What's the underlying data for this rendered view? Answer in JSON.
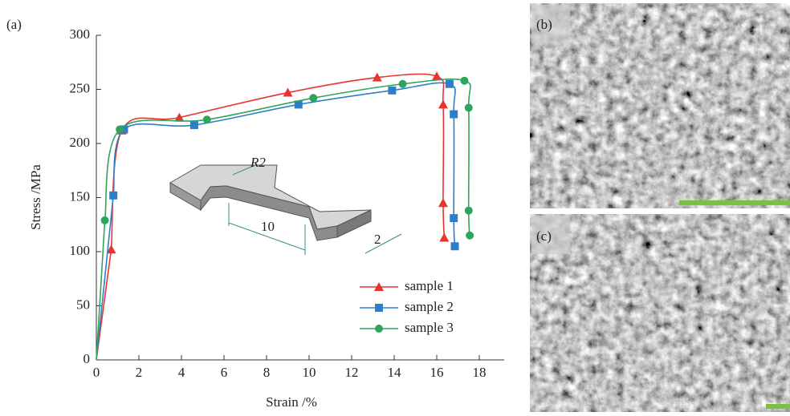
{
  "chart_data": {
    "type": "line",
    "panel_labels": [
      "(a)",
      "(b)",
      "(c)"
    ],
    "xlabel": "Strain /%",
    "ylabel": "Stress /MPa",
    "xlim": [
      0,
      19
    ],
    "ylim": [
      0,
      300
    ],
    "xticks": [
      0,
      2,
      4,
      6,
      8,
      10,
      12,
      14,
      16,
      18
    ],
    "yticks": [
      0,
      50,
      100,
      150,
      200,
      250,
      300
    ],
    "annotations": [
      "R2",
      "10",
      "2"
    ],
    "legend": "lower right",
    "series": [
      {
        "name": "sample 1",
        "color": "#e8332f",
        "marker": "triangle",
        "x": [
          0.7,
          1.2,
          3.9,
          9.0,
          13.2,
          16.0,
          16.3,
          16.3,
          16.35
        ],
        "values": [
          102,
          212,
          224,
          247,
          261,
          262,
          236,
          145,
          113
        ]
      },
      {
        "name": "sample 2",
        "color": "#2f7fc8",
        "marker": "square",
        "x": [
          0.8,
          1.3,
          4.6,
          9.5,
          13.9,
          16.6,
          16.8,
          16.8,
          16.85
        ],
        "values": [
          152,
          213,
          217,
          236,
          249,
          255,
          227,
          131,
          105
        ]
      },
      {
        "name": "sample 3",
        "color": "#2ea55a",
        "marker": "circle",
        "x": [
          0.4,
          1.1,
          5.2,
          10.2,
          14.4,
          17.3,
          17.5,
          17.5,
          17.55
        ],
        "values": [
          129,
          213,
          222,
          242,
          255,
          258,
          233,
          138,
          115
        ]
      }
    ]
  }
}
